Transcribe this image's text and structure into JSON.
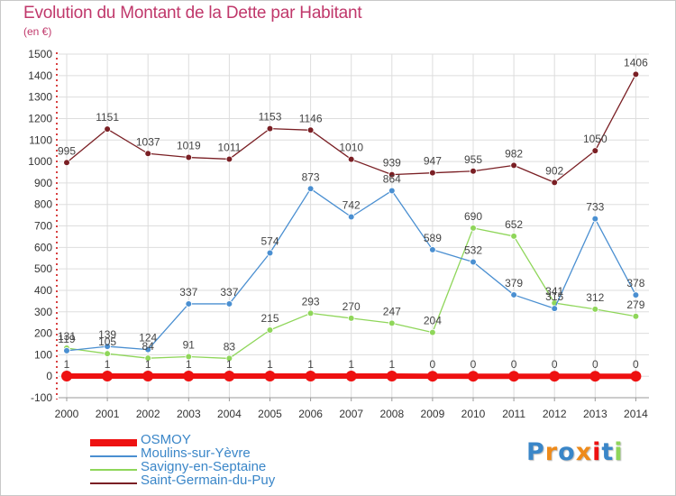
{
  "header": {
    "title": "Evolution du Montant de la Dette par Habitant",
    "subtitle": "(en €)"
  },
  "colors": {
    "title": "#c0386b",
    "legend_text": "#3a86c8",
    "axis_ticks": "#cc0000",
    "grid": "#dddddd"
  },
  "chart_data": {
    "type": "line",
    "title": "Evolution du Montant de la Dette par Habitant",
    "subtitle": "(en €)",
    "xlabel": "",
    "ylabel": "",
    "x": [
      "2000",
      "2001",
      "2002",
      "2003",
      "2004",
      "2005",
      "2006",
      "2007",
      "2008",
      "2009",
      "2010",
      "2011",
      "2012",
      "2013",
      "2014"
    ],
    "ylim": [
      -100,
      1500
    ],
    "yticks": [
      -100,
      0,
      100,
      200,
      300,
      400,
      500,
      600,
      700,
      800,
      900,
      1000,
      1100,
      1200,
      1300,
      1400,
      1500
    ],
    "grid": true,
    "legend_position": "bottom-left",
    "series": [
      {
        "name": "OSMOY",
        "color": "#ee1111",
        "values": [
          1,
          1,
          1,
          1,
          1,
          1,
          1,
          1,
          1,
          0,
          0,
          0,
          0,
          0,
          0
        ],
        "labels": [
          "1",
          "1",
          "1",
          "1",
          "1",
          "1",
          "1",
          "1",
          "1",
          "0",
          "0",
          "0",
          "0",
          "0",
          "0"
        ]
      },
      {
        "name": "Moulins-sur-Yèvre",
        "color": "#4a8fd1",
        "values": [
          119,
          139,
          124,
          337,
          337,
          574,
          873,
          742,
          864,
          589,
          532,
          379,
          315,
          733,
          378
        ],
        "labels": [
          "119",
          "139",
          "124",
          "337",
          "337",
          "574",
          "873",
          "742",
          "864",
          "589",
          "532",
          "379",
          "315",
          "733",
          "378"
        ]
      },
      {
        "name": "Savigny-en-Septaine",
        "color": "#8fd65a",
        "values": [
          131,
          105,
          84,
          91,
          83,
          215,
          293,
          270,
          247,
          204,
          690,
          652,
          341,
          312,
          279
        ],
        "labels": [
          "131",
          "105",
          "84",
          "91",
          "83",
          "215",
          "293",
          "270",
          "247",
          "204",
          "690",
          "652",
          "341",
          "312",
          "279"
        ]
      },
      {
        "name": "Saint-Germain-du-Puy",
        "color": "#7a1f24",
        "values": [
          995,
          1151,
          1037,
          1019,
          1011,
          1153,
          1146,
          1010,
          939,
          947,
          955,
          982,
          902,
          1050,
          1406
        ],
        "labels": [
          "995",
          "1151",
          "1037",
          "1019",
          "1011",
          "1153",
          "1146",
          "1010",
          "939",
          "947",
          "955",
          "982",
          "902",
          "1050",
          "1406"
        ]
      }
    ]
  },
  "branding": {
    "logo_text": "Proxiti",
    "logo_letter_colors": [
      "#3a86c8",
      "#ee8a1a",
      "#3a86c8",
      "#ee8a1a",
      "#ee1111",
      "#3a86c8",
      "#8fd65a"
    ]
  }
}
